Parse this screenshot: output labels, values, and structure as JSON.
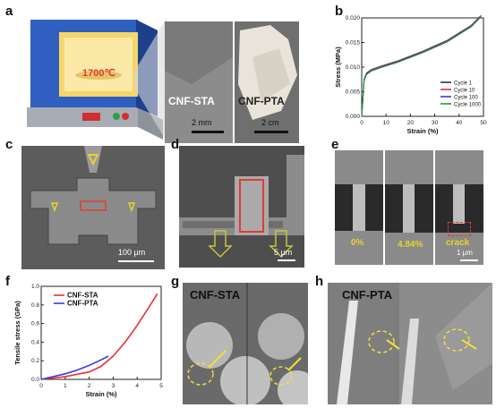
{
  "panels": {
    "a": {
      "label": "a",
      "furnace_temp": "1700℃",
      "img1_label": "CNF-STA",
      "img1_scale": "2 mm",
      "img2_label": "CNF-PTA",
      "img2_scale": "2 cm"
    },
    "b": {
      "label": "b",
      "chart_title": "",
      "xlabel": "Strain (%)",
      "ylabel": "Stress (MPa)",
      "legend": [
        "Cycle 1",
        "Cycle 10",
        "Cycle 100",
        "Cycle 1000"
      ],
      "legend_colors": [
        "#333333",
        "#d33333",
        "#3a3adb",
        "#2a9a3a"
      ]
    },
    "c": {
      "label": "c",
      "scale": "100 μm"
    },
    "d": {
      "label": "d",
      "scale": "5 μm"
    },
    "e": {
      "label": "e",
      "frames": [
        "0%",
        "4.84%",
        "crack"
      ],
      "scale": "1 μm"
    },
    "f": {
      "label": "f",
      "xlabel": "Strain (%)",
      "ylabel": "Tensile stress (GPa)",
      "legend": [
        "CNF-STA",
        "CNF-PTA"
      ],
      "legend_colors": [
        "#e5323b",
        "#3b3bdb"
      ]
    },
    "g": {
      "label": "g",
      "title": "CNF-STA"
    },
    "h": {
      "label": "h",
      "title": "CNF-PTA"
    }
  },
  "chart_data": [
    {
      "type": "line",
      "panel": "b",
      "xlabel": "Strain (%)",
      "ylabel": "Stress (MPa)",
      "xlim": [
        0,
        50
      ],
      "ylim": [
        0,
        0.02
      ],
      "xticks": [
        0,
        10,
        20,
        30,
        40,
        50
      ],
      "yticks": [
        0.0,
        0.005,
        0.01,
        0.015,
        0.02
      ],
      "series": [
        {
          "name": "Cycle 1",
          "x": [
            0,
            1,
            2,
            4,
            8,
            15,
            25,
            35,
            45,
            49
          ],
          "y": [
            0,
            0.0075,
            0.0088,
            0.0095,
            0.0102,
            0.0113,
            0.0132,
            0.0154,
            0.0185,
            0.0205
          ]
        },
        {
          "name": "Cycle 10",
          "x": [
            0,
            1,
            2,
            4,
            8,
            15,
            25,
            35,
            45,
            49
          ],
          "y": [
            0,
            0.0074,
            0.0087,
            0.0094,
            0.0101,
            0.0112,
            0.0131,
            0.0153,
            0.0184,
            0.0204
          ]
        },
        {
          "name": "Cycle 100",
          "x": [
            0,
            1,
            2,
            4,
            8,
            15,
            25,
            35,
            45,
            49
          ],
          "y": [
            0,
            0.0073,
            0.0086,
            0.0093,
            0.01,
            0.0111,
            0.013,
            0.0152,
            0.0183,
            0.0203
          ]
        },
        {
          "name": "Cycle 1000",
          "x": [
            0,
            1,
            2,
            4,
            8,
            15,
            25,
            35,
            45,
            49
          ],
          "y": [
            0,
            0.0072,
            0.0085,
            0.0092,
            0.0099,
            0.011,
            0.0129,
            0.0151,
            0.0182,
            0.0202
          ]
        }
      ]
    },
    {
      "type": "line",
      "panel": "f",
      "xlabel": "Strain (%)",
      "ylabel": "Tensile stress (GPa)",
      "xlim": [
        0,
        5
      ],
      "ylim": [
        0,
        1.0
      ],
      "xticks": [
        0,
        1,
        2,
        3,
        4,
        5
      ],
      "yticks": [
        0.0,
        0.2,
        0.4,
        0.6,
        0.8,
        1.0
      ],
      "series": [
        {
          "name": "CNF-STA",
          "x": [
            0,
            1,
            2,
            2.5,
            3,
            3.5,
            4,
            4.5,
            4.84
          ],
          "y": [
            0,
            0.03,
            0.08,
            0.14,
            0.25,
            0.4,
            0.58,
            0.78,
            0.92
          ]
        },
        {
          "name": "CNF-PTA",
          "x": [
            0,
            0.5,
            1,
            1.5,
            2,
            2.5,
            2.8
          ],
          "y": [
            0,
            0.03,
            0.06,
            0.1,
            0.15,
            0.21,
            0.25
          ]
        }
      ]
    }
  ]
}
